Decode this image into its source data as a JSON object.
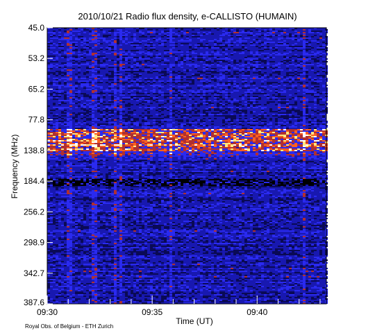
{
  "chart_data": {
    "type": "heatmap",
    "title": "2010/10/21  Radio flux density, e-CALLISTO (HUMAIN)",
    "xlabel": "Time (UT)",
    "ylabel": "Frequency (MHz)",
    "credit": "Royal Obs. of Belgium - ETH Zurich",
    "xticks": [
      {
        "label": "09:30",
        "minute": 0
      },
      {
        "label": "09:35",
        "minute": 5
      },
      {
        "label": "09:40",
        "minute": 10
      }
    ],
    "xrange_minutes": [
      0,
      13.3
    ],
    "yticks": [
      "45.0",
      "53.2",
      "65.2",
      "77.8",
      "138.8",
      "184.4",
      "256.2",
      "298.9",
      "342.7",
      "387.6"
    ],
    "colormap": [
      "#0a0a55",
      "#1818b0",
      "#2a2af0",
      "#b03030",
      "#ff6020",
      "#ffe880",
      "#ffffff"
    ],
    "features": [
      {
        "name": "intense emission band",
        "freq_from": "77.8",
        "freq_to": "138.8"
      },
      {
        "name": "moderate band",
        "freq_at": "138.8"
      },
      {
        "name": "dark band",
        "freq_at": "184.4"
      }
    ]
  }
}
